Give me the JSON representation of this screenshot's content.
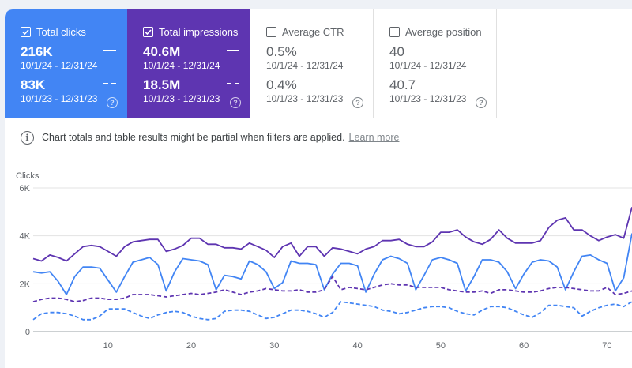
{
  "cards": [
    {
      "label": "Total clicks",
      "checked": true,
      "metrics": [
        {
          "value": "216K",
          "range": "10/1/24 - 12/31/24"
        },
        {
          "value": "83K",
          "range": "10/1/23 - 12/31/23"
        }
      ]
    },
    {
      "label": "Total impressions",
      "checked": true,
      "metrics": [
        {
          "value": "40.6M",
          "range": "10/1/24 - 12/31/24"
        },
        {
          "value": "18.5M",
          "range": "10/1/23 - 12/31/23"
        }
      ]
    },
    {
      "label": "Average CTR",
      "checked": false,
      "metrics": [
        {
          "value": "0.5%",
          "range": "10/1/24 - 12/31/24"
        },
        {
          "value": "0.4%",
          "range": "10/1/23 - 12/31/23"
        }
      ]
    },
    {
      "label": "Average position",
      "checked": false,
      "metrics": [
        {
          "value": "40",
          "range": "10/1/24 - 12/31/24"
        },
        {
          "value": "40.7",
          "range": "10/1/23 - 12/31/23"
        }
      ]
    }
  ],
  "help_glyph": "?",
  "notice": {
    "text": "Chart totals and table results might be partial when filters are applied.",
    "link": "Learn more",
    "icon": "info-icon",
    "icon_glyph": "i"
  },
  "colors": {
    "clicks": "#4285f4",
    "impressions": "#5e35b1"
  },
  "chart_data": {
    "type": "line",
    "ylabel": "Clicks",
    "y_ticks": [
      "0",
      "2K",
      "4K",
      "6K"
    ],
    "ylim": [
      0,
      6000
    ],
    "x_ticks": [
      10,
      20,
      30,
      40,
      50,
      60,
      70
    ],
    "xlim": [
      1,
      73
    ],
    "series": [
      {
        "name": "Total impressions (10/1/24 - 12/31/24)",
        "color": "#5e35b1",
        "dashed": false,
        "values": [
          3050,
          2950,
          3200,
          3100,
          2950,
          3250,
          3550,
          3600,
          3550,
          3350,
          3150,
          3550,
          3750,
          3800,
          3850,
          3850,
          3350,
          3450,
          3600,
          3900,
          3900,
          3650,
          3650,
          3500,
          3500,
          3450,
          3700,
          3550,
          3400,
          3100,
          3550,
          3700,
          3150,
          3550,
          3550,
          3150,
          3500,
          3450,
          3350,
          3250,
          3450,
          3550,
          3800,
          3800,
          3850,
          3650,
          3550,
          3550,
          3750,
          4150,
          4150,
          4250,
          3950,
          3750,
          3650,
          3850,
          4250,
          3900,
          3700,
          3700,
          3700,
          3800,
          4350,
          4650,
          4750,
          4250,
          4250,
          4000,
          3800,
          3950,
          4050,
          3900,
          5200
        ]
      },
      {
        "name": "Total clicks (10/1/24 - 12/31/24)",
        "color": "#4285f4",
        "dashed": false,
        "values": [
          2500,
          2450,
          2500,
          2100,
          1550,
          2300,
          2700,
          2700,
          2650,
          2150,
          1650,
          2300,
          2900,
          3000,
          3100,
          2800,
          1700,
          2500,
          3050,
          3000,
          2950,
          2800,
          1750,
          2350,
          2300,
          2200,
          2950,
          2800,
          2500,
          1800,
          2050,
          2950,
          2850,
          2850,
          2800,
          1750,
          2400,
          2850,
          2850,
          2750,
          1650,
          2400,
          3000,
          3150,
          3050,
          2850,
          1750,
          2350,
          3000,
          3100,
          3000,
          2850,
          1700,
          2300,
          3000,
          3000,
          2900,
          2500,
          1800,
          2400,
          2900,
          3000,
          2950,
          2700,
          1750,
          2500,
          3150,
          3200,
          3000,
          2850,
          1700,
          2250,
          4100
        ]
      },
      {
        "name": "Total impressions (10/1/23 - 12/31/23)",
        "color": "#5e35b1",
        "dashed": true,
        "values": [
          1250,
          1350,
          1400,
          1400,
          1350,
          1250,
          1300,
          1400,
          1400,
          1350,
          1350,
          1400,
          1550,
          1550,
          1550,
          1500,
          1450,
          1500,
          1550,
          1600,
          1550,
          1600,
          1650,
          1750,
          1650,
          1550,
          1650,
          1700,
          1800,
          1750,
          1700,
          1700,
          1750,
          1650,
          1650,
          1750,
          2300,
          1750,
          1850,
          1800,
          1750,
          1850,
          1950,
          2000,
          1950,
          1950,
          1850,
          1850,
          1850,
          1850,
          1750,
          1700,
          1650,
          1650,
          1700,
          1600,
          1750,
          1750,
          1700,
          1650,
          1650,
          1700,
          1800,
          1850,
          1850,
          1800,
          1750,
          1700,
          1700,
          1850,
          1550,
          1600,
          1700
        ]
      },
      {
        "name": "Total clicks (10/1/23 - 12/31/23)",
        "color": "#4285f4",
        "dashed": true,
        "values": [
          500,
          750,
          800,
          800,
          750,
          650,
          500,
          500,
          650,
          950,
          950,
          950,
          800,
          650,
          550,
          700,
          800,
          850,
          800,
          650,
          550,
          500,
          550,
          850,
          900,
          900,
          850,
          700,
          550,
          600,
          750,
          900,
          900,
          850,
          750,
          600,
          800,
          1250,
          1200,
          1150,
          1100,
          1050,
          900,
          850,
          750,
          800,
          900,
          1000,
          1050,
          1050,
          1000,
          850,
          750,
          700,
          900,
          1050,
          1050,
          1000,
          850,
          700,
          600,
          800,
          1100,
          1100,
          1050,
          1000,
          650,
          850,
          1000,
          1100,
          1150,
          1050,
          1250
        ]
      }
    ]
  }
}
